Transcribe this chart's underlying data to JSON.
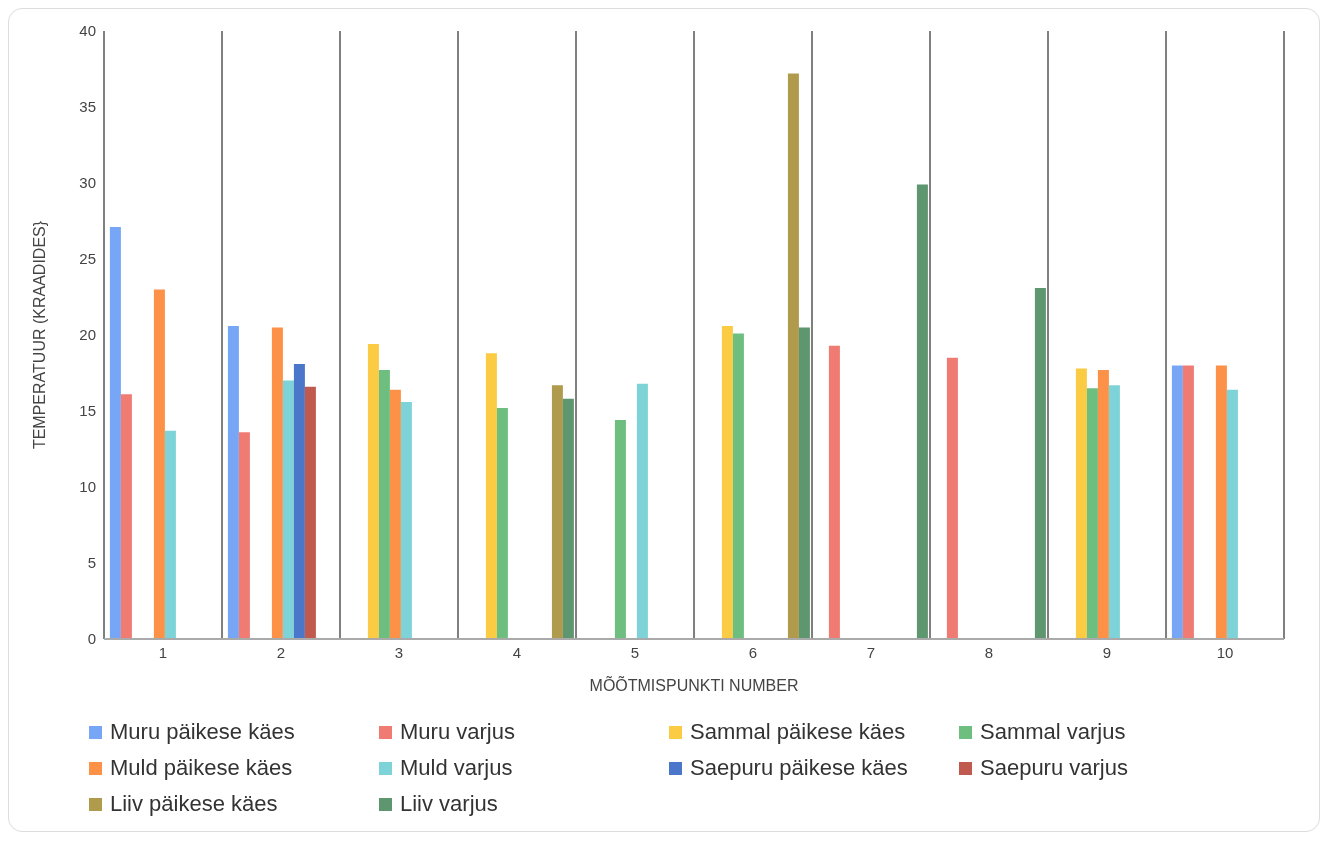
{
  "chart_data": {
    "type": "bar",
    "xlabel": "MÕÕTMISPUNKTI NUMBER",
    "ylabel": "TEMPERATUUR (KRAADIDES}",
    "categories": [
      "1",
      "2",
      "3",
      "4",
      "5",
      "6",
      "7",
      "8",
      "9",
      "10"
    ],
    "ylim": [
      0,
      40
    ],
    "yticks": [
      0,
      5,
      10,
      15,
      20,
      25,
      30,
      35,
      40
    ],
    "grid": "x",
    "legend": "bottom",
    "series": [
      {
        "name": "Muru päikese käes",
        "color": "#78a6f6",
        "values": [
          27.1,
          20.6,
          null,
          null,
          null,
          null,
          null,
          null,
          null,
          18.0
        ]
      },
      {
        "name": "Muru varjus",
        "color": "#f07b72",
        "values": [
          16.1,
          13.6,
          null,
          null,
          null,
          null,
          19.3,
          18.5,
          null,
          18.0
        ]
      },
      {
        "name": "Sammal päikese käes",
        "color": "#fbcb43",
        "values": [
          null,
          null,
          19.4,
          18.8,
          null,
          20.6,
          null,
          null,
          17.8,
          null
        ]
      },
      {
        "name": "Sammal varjus",
        "color": "#6dbe7f",
        "values": [
          null,
          null,
          17.7,
          15.2,
          14.4,
          20.1,
          null,
          null,
          16.5,
          null
        ]
      },
      {
        "name": "Muld päikese käes",
        "color": "#fd9147",
        "values": [
          23.0,
          20.5,
          16.4,
          null,
          null,
          null,
          null,
          null,
          17.7,
          18.0
        ]
      },
      {
        "name": "Muld varjus",
        "color": "#7dd3d8",
        "values": [
          13.7,
          17.0,
          15.6,
          null,
          16.8,
          null,
          null,
          null,
          16.7,
          16.4
        ]
      },
      {
        "name": "Saepuru päikese käes",
        "color": "#4a77c9",
        "values": [
          null,
          18.1,
          null,
          null,
          null,
          null,
          null,
          null,
          null,
          null
        ]
      },
      {
        "name": "Saepuru varjus",
        "color": "#c0594e",
        "values": [
          null,
          16.6,
          null,
          null,
          null,
          null,
          null,
          null,
          null,
          null
        ]
      },
      {
        "name": "Liiv päikese käes",
        "color": "#b09a4b",
        "values": [
          null,
          null,
          null,
          16.7,
          null,
          37.2,
          null,
          null,
          null,
          null
        ]
      },
      {
        "name": "Liiv varjus",
        "color": "#5e9670",
        "values": [
          null,
          null,
          null,
          15.8,
          null,
          20.5,
          29.9,
          23.1,
          null,
          null
        ]
      }
    ]
  }
}
